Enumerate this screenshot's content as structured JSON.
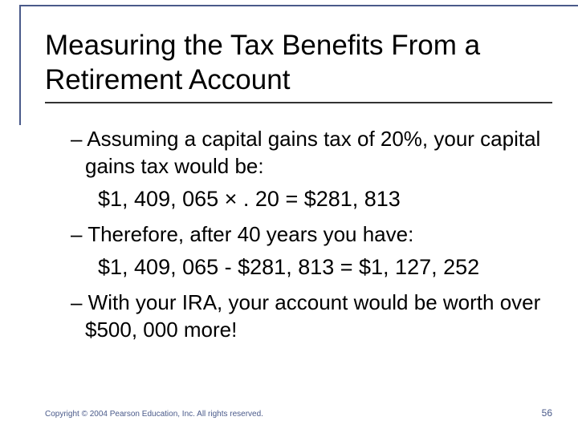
{
  "colors": {
    "rule": "#4a5a8a",
    "text": "#000000",
    "footer": "#4a5a8a",
    "background": "#ffffff"
  },
  "title": "Measuring the Tax Benefits From a Retirement Account",
  "bullets": [
    {
      "text": "– Assuming a capital gains tax of 20%, your capital gains tax would be:"
    },
    {
      "calc": "$1, 409, 065 × . 20 = $281, 813"
    },
    {
      "text": "– Therefore, after 40 years you have:"
    },
    {
      "calc": "$1, 409, 065 - $281, 813 = $1, 127, 252"
    },
    {
      "text": "– With your IRA, your account would be worth over $500, 000 more!"
    }
  ],
  "footer": {
    "copyright": "Copyright © 2004 Pearson Education, Inc. All rights reserved.",
    "page": "56"
  }
}
